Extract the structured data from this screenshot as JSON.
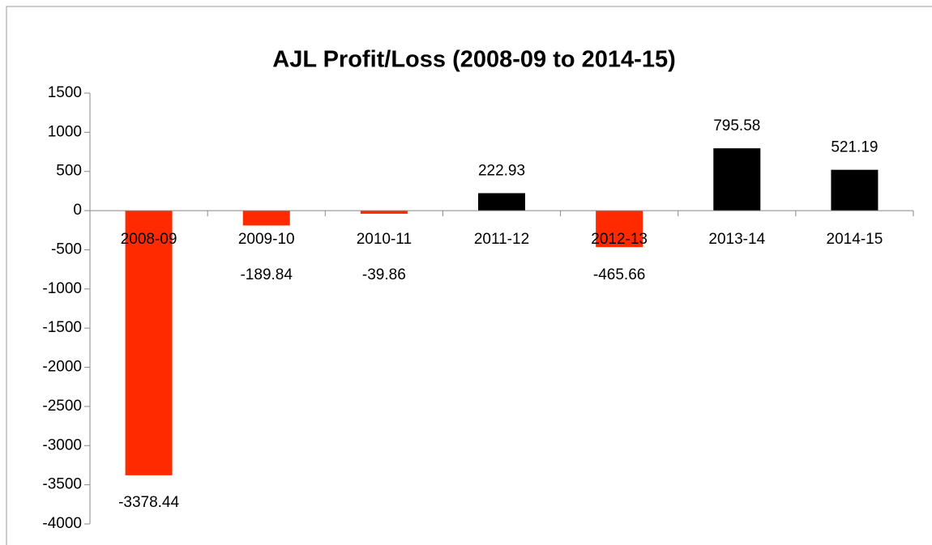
{
  "chart_data": {
    "type": "bar",
    "title": "AJL Profit/Loss (2008-09 to 2014-15)",
    "categories": [
      "2008-09",
      "2009-10",
      "2010-11",
      "2011-12",
      "2012-13",
      "2013-14",
      "2014-15"
    ],
    "values": [
      -3378.44,
      -189.84,
      -39.86,
      222.93,
      -465.66,
      795.58,
      521.19
    ],
    "colors": [
      "#ff2a00",
      "#ff2a00",
      "#ff2a00",
      "#000000",
      "#ff2a00",
      "#000000",
      "#000000"
    ],
    "ylim": [
      -4000,
      1500
    ],
    "yticks": [
      -4000,
      -3500,
      -3000,
      -2500,
      -2000,
      -1500,
      -1000,
      -500,
      0,
      500,
      1000,
      1500
    ],
    "grid": false
  }
}
